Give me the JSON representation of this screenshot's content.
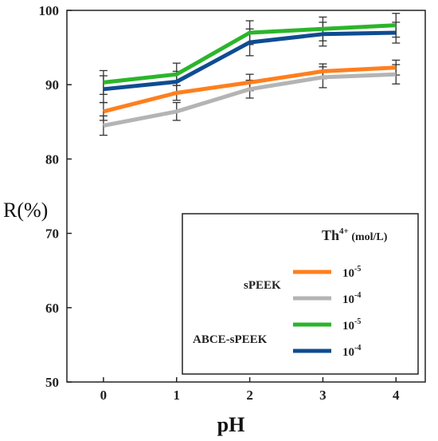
{
  "chart_data": {
    "type": "line",
    "title": "",
    "xlabel": "pH",
    "ylabel": "R(%)",
    "x": [
      0,
      1,
      2,
      3,
      4
    ],
    "xlim": [
      -0.5,
      4.4
    ],
    "ylim": [
      50,
      100
    ],
    "yticks": [
      50,
      60,
      70,
      80,
      90,
      100
    ],
    "xticks": [
      0,
      1,
      2,
      3,
      4
    ],
    "grid": false,
    "legend_position": "bottom-right",
    "legend": {
      "title_main": "Th",
      "title_sup": "4+",
      "title_unit": " (mol/L)",
      "group_labels": [
        "sPEEK",
        "ABCE-sPEEK"
      ],
      "entries": [
        {
          "base": "10",
          "exp": "-5"
        },
        {
          "base": "10",
          "exp": "-4"
        },
        {
          "base": "10",
          "exp": "-5"
        },
        {
          "base": "10",
          "exp": "-4"
        }
      ]
    },
    "series": [
      {
        "group": "sPEEK",
        "concentration": "10^-5",
        "color": "#ff7f1e",
        "values": [
          86.4,
          88.9,
          90.3,
          91.8,
          92.3
        ],
        "errors": [
          1.2,
          1.0,
          1.1,
          1.0,
          1.0
        ]
      },
      {
        "group": "sPEEK",
        "concentration": "10^-4",
        "color": "#b4b4b4",
        "values": [
          84.5,
          86.4,
          89.4,
          91.0,
          91.4
        ],
        "errors": [
          1.3,
          1.2,
          1.2,
          1.4,
          1.3
        ]
      },
      {
        "group": "ABCE-sPEEK",
        "concentration": "10^-5",
        "color": "#2bb52b",
        "values": [
          90.3,
          91.4,
          97.0,
          97.5,
          98.0
        ],
        "errors": [
          1.6,
          1.5,
          1.6,
          1.6,
          1.6
        ]
      },
      {
        "group": "ABCE-sPEEK",
        "concentration": "10^-4",
        "color": "#0f4c92",
        "values": [
          89.4,
          90.4,
          95.7,
          96.8,
          97.0
        ],
        "errors": [
          1.8,
          1.4,
          1.8,
          1.6,
          1.4
        ]
      }
    ]
  }
}
